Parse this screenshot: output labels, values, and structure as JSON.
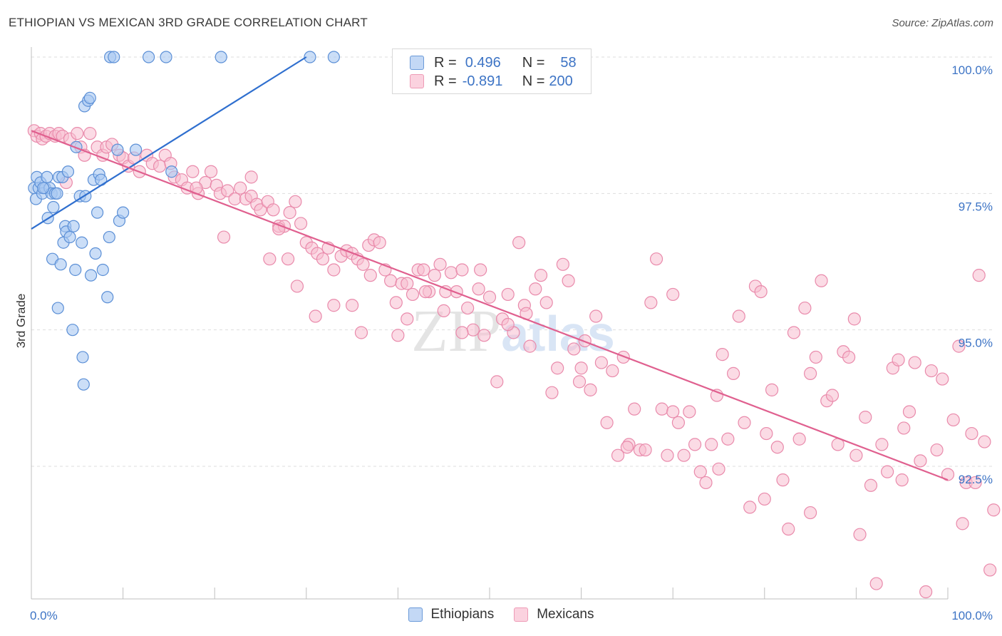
{
  "title": "ETHIOPIAN VS MEXICAN 3RD GRADE CORRELATION CHART",
  "source": "Source: ZipAtlas.com",
  "watermark": "ZIPatlas",
  "legend": {
    "rows": [
      {
        "r_label": "R =",
        "r_value": "0.496",
        "n_label": "N =",
        "n_value": "58"
      },
      {
        "r_label": "R =",
        "r_value": "-0.891",
        "n_label": "N =",
        "n_value": "200"
      }
    ]
  },
  "colors": {
    "ethiopians_fill": "#a9c8f2",
    "ethiopians_stroke": "#5b8fd6",
    "ethiopians_line": "#2f6fcf",
    "mexicans_fill": "#f7bdd0",
    "mexicans_stroke": "#e98aab",
    "mexicans_line": "#e0608f",
    "tick_label": "#3d74c5",
    "grid": "#dddddd"
  },
  "chart_data": {
    "type": "scatter",
    "title": "ETHIOPIAN VS MEXICAN 3RD GRADE CORRELATION CHART",
    "xlabel": "",
    "ylabel": "3rd Grade",
    "xlim": [
      0,
      100
    ],
    "ylim": [
      90.0,
      100.2
    ],
    "x_tick_labels": [
      "0.0%",
      "100.0%"
    ],
    "y_ticks": [
      92.5,
      95.0,
      97.5,
      100.0
    ],
    "y_tick_labels": [
      "92.5%",
      "95.0%",
      "97.5%",
      "100.0%"
    ],
    "grid": true,
    "legend_position": "top-center",
    "series": [
      {
        "name": "Ethiopians",
        "r": 0.496,
        "n": 58,
        "trend": {
          "x": [
            0,
            30
          ],
          "y": [
            96.85,
            100.0
          ]
        },
        "points": [
          [
            0.3,
            97.6
          ],
          [
            0.5,
            97.4
          ],
          [
            0.6,
            97.8
          ],
          [
            0.8,
            97.6
          ],
          [
            1.0,
            97.7
          ],
          [
            1.2,
            97.5
          ],
          [
            1.5,
            97.6
          ],
          [
            1.7,
            97.8
          ],
          [
            1.8,
            97.05
          ],
          [
            2.0,
            97.6
          ],
          [
            2.2,
            97.5
          ],
          [
            2.3,
            96.3
          ],
          [
            2.4,
            97.25
          ],
          [
            2.6,
            97.5
          ],
          [
            2.8,
            97.5
          ],
          [
            2.9,
            95.4
          ],
          [
            3.0,
            97.8
          ],
          [
            3.2,
            96.2
          ],
          [
            3.4,
            97.8
          ],
          [
            3.5,
            96.6
          ],
          [
            3.7,
            96.9
          ],
          [
            3.8,
            96.8
          ],
          [
            4.0,
            97.9
          ],
          [
            4.2,
            96.7
          ],
          [
            4.5,
            95.0
          ],
          [
            4.6,
            96.9
          ],
          [
            4.8,
            96.1
          ],
          [
            4.9,
            98.35
          ],
          [
            5.3,
            97.45
          ],
          [
            5.5,
            96.6
          ],
          [
            5.6,
            94.5
          ],
          [
            5.7,
            94.0
          ],
          [
            5.8,
            99.1
          ],
          [
            5.9,
            97.45
          ],
          [
            6.2,
            99.2
          ],
          [
            6.4,
            99.25
          ],
          [
            6.5,
            96.0
          ],
          [
            6.8,
            97.75
          ],
          [
            7.0,
            96.4
          ],
          [
            7.2,
            97.15
          ],
          [
            7.4,
            97.85
          ],
          [
            7.6,
            97.75
          ],
          [
            7.8,
            96.1
          ],
          [
            8.3,
            95.6
          ],
          [
            8.5,
            96.7
          ],
          [
            8.6,
            100.0
          ],
          [
            9.0,
            100.0
          ],
          [
            9.4,
            98.3
          ],
          [
            9.6,
            97.0
          ],
          [
            10.0,
            97.15
          ],
          [
            11.4,
            98.3
          ],
          [
            12.8,
            100.0
          ],
          [
            14.7,
            100.0
          ],
          [
            15.3,
            97.9
          ],
          [
            20.7,
            100.0
          ],
          [
            30.4,
            100.0
          ],
          [
            33.0,
            100.0
          ],
          [
            1.3,
            97.6
          ]
        ]
      },
      {
        "name": "Mexicans",
        "r": -0.891,
        "n": 200,
        "trend": {
          "x": [
            0,
            100
          ],
          "y": [
            98.65,
            92.25
          ]
        },
        "points": [
          [
            0.3,
            98.65
          ],
          [
            0.6,
            98.55
          ],
          [
            1.0,
            98.6
          ],
          [
            1.2,
            98.5
          ],
          [
            1.6,
            98.55
          ],
          [
            2.0,
            98.6
          ],
          [
            2.6,
            98.55
          ],
          [
            3.0,
            98.6
          ],
          [
            3.4,
            98.55
          ],
          [
            3.8,
            97.7
          ],
          [
            4.2,
            98.5
          ],
          [
            5.0,
            98.6
          ],
          [
            5.4,
            98.35
          ],
          [
            5.8,
            98.2
          ],
          [
            6.4,
            98.6
          ],
          [
            7.2,
            98.35
          ],
          [
            7.8,
            98.2
          ],
          [
            8.2,
            98.35
          ],
          [
            8.8,
            98.4
          ],
          [
            9.6,
            98.2
          ],
          [
            10.0,
            98.15
          ],
          [
            10.6,
            98.0
          ],
          [
            11.2,
            98.15
          ],
          [
            11.8,
            97.9
          ],
          [
            12.6,
            98.2
          ],
          [
            13.2,
            98.05
          ],
          [
            14.0,
            98.0
          ],
          [
            14.6,
            98.2
          ],
          [
            15.2,
            98.05
          ],
          [
            15.6,
            97.8
          ],
          [
            16.4,
            97.75
          ],
          [
            17.0,
            97.6
          ],
          [
            17.6,
            97.9
          ],
          [
            18.2,
            97.5
          ],
          [
            19.0,
            97.7
          ],
          [
            19.6,
            97.9
          ],
          [
            20.2,
            97.65
          ],
          [
            20.6,
            97.5
          ],
          [
            21.4,
            97.55
          ],
          [
            22.2,
            97.4
          ],
          [
            22.8,
            97.6
          ],
          [
            23.4,
            97.4
          ],
          [
            24.0,
            97.45
          ],
          [
            24.6,
            97.3
          ],
          [
            25.0,
            97.2
          ],
          [
            25.8,
            97.35
          ],
          [
            26.4,
            97.2
          ],
          [
            27.0,
            96.9
          ],
          [
            27.6,
            96.9
          ],
          [
            28.2,
            97.15
          ],
          [
            28.8,
            97.35
          ],
          [
            29.4,
            96.95
          ],
          [
            30.0,
            96.6
          ],
          [
            30.6,
            96.5
          ],
          [
            31.2,
            96.4
          ],
          [
            31.8,
            96.3
          ],
          [
            32.4,
            96.5
          ],
          [
            33.0,
            96.1
          ],
          [
            33.8,
            96.35
          ],
          [
            34.4,
            96.45
          ],
          [
            35.0,
            96.4
          ],
          [
            35.6,
            96.3
          ],
          [
            36.2,
            96.2
          ],
          [
            36.8,
            96.55
          ],
          [
            37.4,
            96.65
          ],
          [
            38.0,
            96.6
          ],
          [
            38.6,
            96.1
          ],
          [
            39.2,
            95.9
          ],
          [
            39.8,
            95.5
          ],
          [
            40.4,
            95.85
          ],
          [
            41.0,
            95.2
          ],
          [
            41.6,
            95.65
          ],
          [
            42.2,
            96.1
          ],
          [
            42.8,
            96.1
          ],
          [
            43.4,
            95.7
          ],
          [
            44.0,
            96.0
          ],
          [
            44.6,
            96.2
          ],
          [
            45.2,
            95.7
          ],
          [
            45.8,
            96.05
          ],
          [
            46.4,
            95.7
          ],
          [
            47.0,
            96.1
          ],
          [
            47.6,
            95.4
          ],
          [
            48.2,
            95.0
          ],
          [
            48.8,
            95.75
          ],
          [
            49.4,
            94.9
          ],
          [
            50.0,
            95.6
          ],
          [
            50.8,
            94.05
          ],
          [
            51.4,
            95.2
          ],
          [
            52.0,
            95.65
          ],
          [
            52.6,
            94.95
          ],
          [
            53.2,
            96.6
          ],
          [
            53.8,
            95.45
          ],
          [
            54.4,
            94.7
          ],
          [
            55.0,
            95.75
          ],
          [
            55.6,
            96.0
          ],
          [
            56.2,
            95.5
          ],
          [
            56.8,
            93.85
          ],
          [
            57.4,
            94.3
          ],
          [
            58.0,
            96.2
          ],
          [
            58.6,
            95.9
          ],
          [
            59.2,
            94.65
          ],
          [
            59.8,
            94.05
          ],
          [
            60.4,
            94.8
          ],
          [
            61.0,
            93.9
          ],
          [
            61.6,
            95.25
          ],
          [
            62.2,
            94.4
          ],
          [
            62.8,
            93.3
          ],
          [
            63.4,
            94.25
          ],
          [
            64.0,
            92.7
          ],
          [
            64.6,
            94.5
          ],
          [
            65.2,
            92.9
          ],
          [
            65.8,
            93.55
          ],
          [
            66.4,
            92.8
          ],
          [
            67.0,
            92.8
          ],
          [
            67.6,
            95.5
          ],
          [
            68.2,
            96.3
          ],
          [
            68.8,
            93.55
          ],
          [
            69.4,
            92.7
          ],
          [
            70.0,
            95.65
          ],
          [
            70.6,
            93.3
          ],
          [
            71.2,
            92.7
          ],
          [
            71.8,
            93.5
          ],
          [
            72.4,
            92.9
          ],
          [
            73.0,
            92.4
          ],
          [
            73.6,
            92.2
          ],
          [
            74.2,
            92.9
          ],
          [
            74.8,
            93.8
          ],
          [
            75.4,
            94.55
          ],
          [
            76.0,
            93.0
          ],
          [
            76.6,
            94.2
          ],
          [
            77.2,
            95.25
          ],
          [
            77.8,
            93.3
          ],
          [
            78.4,
            91.75
          ],
          [
            79.0,
            95.8
          ],
          [
            79.6,
            95.7
          ],
          [
            80.2,
            93.1
          ],
          [
            80.8,
            93.9
          ],
          [
            81.4,
            92.85
          ],
          [
            82.0,
            92.25
          ],
          [
            82.6,
            91.35
          ],
          [
            83.2,
            94.95
          ],
          [
            83.8,
            93.0
          ],
          [
            84.4,
            95.4
          ],
          [
            85.0,
            91.65
          ],
          [
            85.6,
            94.5
          ],
          [
            86.2,
            95.9
          ],
          [
            86.8,
            93.7
          ],
          [
            87.4,
            93.8
          ],
          [
            88.0,
            92.9
          ],
          [
            88.6,
            94.6
          ],
          [
            89.2,
            94.5
          ],
          [
            89.8,
            95.2
          ],
          [
            90.4,
            91.25
          ],
          [
            91.0,
            93.4
          ],
          [
            91.6,
            92.15
          ],
          [
            92.2,
            90.35
          ],
          [
            92.8,
            92.9
          ],
          [
            93.4,
            92.4
          ],
          [
            94.0,
            94.3
          ],
          [
            94.6,
            94.45
          ],
          [
            95.2,
            93.2
          ],
          [
            95.8,
            93.5
          ],
          [
            96.4,
            94.4
          ],
          [
            97.0,
            92.6
          ],
          [
            97.6,
            90.2
          ],
          [
            98.2,
            94.25
          ],
          [
            98.8,
            92.8
          ],
          [
            99.4,
            94.1
          ],
          [
            100.0,
            92.35
          ],
          [
            100.6,
            93.35
          ],
          [
            101.2,
            94.7
          ],
          [
            101.6,
            91.45
          ],
          [
            102.0,
            92.2
          ],
          [
            102.6,
            93.1
          ],
          [
            103.0,
            92.2
          ],
          [
            103.4,
            96.0
          ],
          [
            104.0,
            92.95
          ],
          [
            104.6,
            90.6
          ],
          [
            105.0,
            91.7
          ],
          [
            26.0,
            96.3
          ],
          [
            28.0,
            96.3
          ],
          [
            31.0,
            95.25
          ],
          [
            35.0,
            95.45
          ],
          [
            36.0,
            94.95
          ],
          [
            40.0,
            94.9
          ],
          [
            43.0,
            95.7
          ],
          [
            47.0,
            94.95
          ],
          [
            52.0,
            95.1
          ],
          [
            54.0,
            95.3
          ],
          [
            18.0,
            97.6
          ],
          [
            21.0,
            96.7
          ],
          [
            24.0,
            97.8
          ],
          [
            27.0,
            96.85
          ],
          [
            29.0,
            95.8
          ],
          [
            33.0,
            95.45
          ],
          [
            37.0,
            96.0
          ],
          [
            41.0,
            95.85
          ],
          [
            45.0,
            95.35
          ],
          [
            49.0,
            96.1
          ],
          [
            60.0,
            94.3
          ],
          [
            65.0,
            92.85
          ],
          [
            70.0,
            93.5
          ],
          [
            75.0,
            92.45
          ],
          [
            80.0,
            91.9
          ],
          [
            85.0,
            94.2
          ],
          [
            90.0,
            92.7
          ],
          [
            95.0,
            92.25
          ]
        ]
      }
    ]
  },
  "bottom_legend": [
    {
      "label": "Ethiopians"
    },
    {
      "label": "Mexicans"
    }
  ]
}
